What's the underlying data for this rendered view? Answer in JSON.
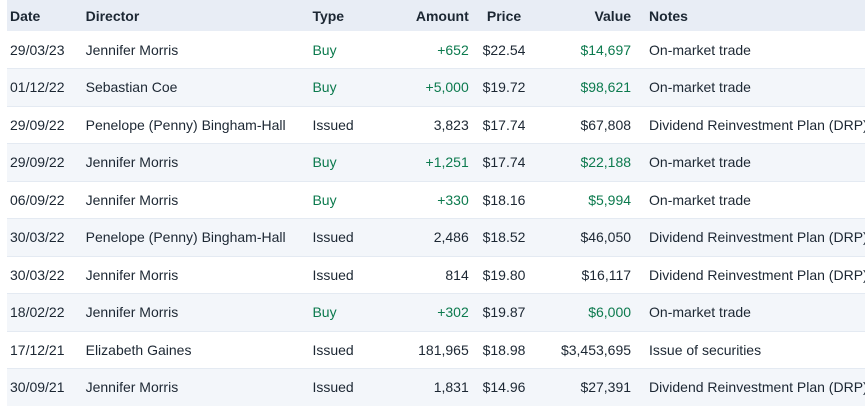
{
  "colors": {
    "header_bg": "#e8edf5",
    "stripe_bg": "#f3f6fa",
    "text": "#1c2733",
    "buy_green": "#0c7a4e",
    "row_border": "#e4eaf2"
  },
  "table": {
    "columns": [
      {
        "key": "date",
        "label": "Date",
        "align": "al"
      },
      {
        "key": "director",
        "label": "Director",
        "align": "al"
      },
      {
        "key": "type",
        "label": "Type",
        "align": "al"
      },
      {
        "key": "amount",
        "label": "Amount",
        "align": "ar"
      },
      {
        "key": "price",
        "label": "Price",
        "align": "ac"
      },
      {
        "key": "value",
        "label": "Value",
        "align": "ar"
      },
      {
        "key": "notes",
        "label": "Notes",
        "align": "al notes-pad"
      }
    ],
    "rows": [
      {
        "date": "29/03/23",
        "director": "Jennifer Morris",
        "type": "Buy",
        "amount": "+652",
        "price": "$22.54",
        "value": "$14,697",
        "notes": "On-market trade",
        "buy": true
      },
      {
        "date": "01/12/22",
        "director": "Sebastian Coe",
        "type": "Buy",
        "amount": "+5,000",
        "price": "$19.72",
        "value": "$98,621",
        "notes": "On-market trade",
        "buy": true
      },
      {
        "date": "29/09/22",
        "director": "Penelope (Penny) Bingham-Hall",
        "type": "Issued",
        "amount": "3,823",
        "price": "$17.74",
        "value": "$67,808",
        "notes": "Dividend Reinvestment Plan (DRP)",
        "buy": false
      },
      {
        "date": "29/09/22",
        "director": "Jennifer Morris",
        "type": "Buy",
        "amount": "+1,251",
        "price": "$17.74",
        "value": "$22,188",
        "notes": "On-market trade",
        "buy": true
      },
      {
        "date": "06/09/22",
        "director": "Jennifer Morris",
        "type": "Buy",
        "amount": "+330",
        "price": "$18.16",
        "value": "$5,994",
        "notes": "On-market trade",
        "buy": true
      },
      {
        "date": "30/03/22",
        "director": "Penelope (Penny) Bingham-Hall",
        "type": "Issued",
        "amount": "2,486",
        "price": "$18.52",
        "value": "$46,050",
        "notes": "Dividend Reinvestment Plan (DRP)",
        "buy": false
      },
      {
        "date": "30/03/22",
        "director": "Jennifer Morris",
        "type": "Issued",
        "amount": "814",
        "price": "$19.80",
        "value": "$16,117",
        "notes": "Dividend Reinvestment Plan (DRP)",
        "buy": false
      },
      {
        "date": "18/02/22",
        "director": "Jennifer Morris",
        "type": "Buy",
        "amount": "+302",
        "price": "$19.87",
        "value": "$6,000",
        "notes": "On-market trade",
        "buy": true
      },
      {
        "date": "17/12/21",
        "director": "Elizabeth Gaines",
        "type": "Issued",
        "amount": "181,965",
        "price": "$18.98",
        "value": "$3,453,695",
        "notes": "Issue of securities",
        "buy": false
      },
      {
        "date": "30/09/21",
        "director": "Jennifer Morris",
        "type": "Issued",
        "amount": "1,831",
        "price": "$14.96",
        "value": "$27,391",
        "notes": "Dividend Reinvestment Plan (DRP)",
        "buy": false
      }
    ]
  }
}
